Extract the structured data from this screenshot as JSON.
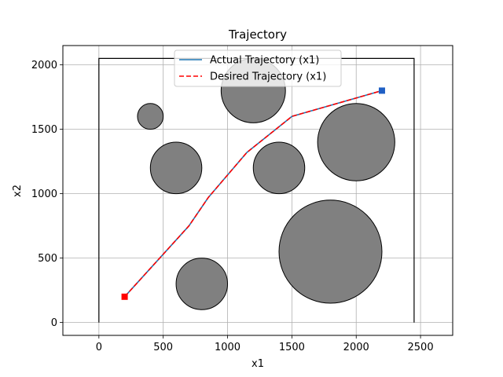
{
  "chart_data": {
    "type": "line",
    "title": "Trajectory",
    "xlabel": "x1",
    "ylabel": "x2",
    "xlim": [
      -280,
      2750
    ],
    "ylim": [
      -100,
      2150
    ],
    "xticks": [
      0,
      500,
      1000,
      1500,
      2000,
      2500
    ],
    "yticks": [
      0,
      500,
      1000,
      1500,
      2000
    ],
    "grid": true,
    "legend_position": "upper center",
    "boundary": {
      "x": [
        0,
        0,
        2450,
        2450
      ],
      "y": [
        0,
        2050,
        2050,
        0
      ]
    },
    "obstacles": [
      {
        "cx": 400,
        "cy": 1600,
        "r": 100
      },
      {
        "cx": 1200,
        "cy": 1800,
        "r": 250
      },
      {
        "cx": 600,
        "cy": 1200,
        "r": 200
      },
      {
        "cx": 1400,
        "cy": 1200,
        "r": 200
      },
      {
        "cx": 2000,
        "cy": 1400,
        "r": 300
      },
      {
        "cx": 800,
        "cy": 300,
        "r": 200
      },
      {
        "cx": 1800,
        "cy": 550,
        "r": 400
      }
    ],
    "series": [
      {
        "name": "Actual Trajectory (x1)",
        "color": "#1f77b4",
        "style": "solid",
        "x": [
          200,
          700,
          850,
          1150,
          1500,
          2200
        ],
        "y": [
          200,
          750,
          970,
          1320,
          1600,
          1800
        ]
      },
      {
        "name": "Desired Trajectory (x1)",
        "color": "#ff0000",
        "style": "dashed",
        "x": [
          200,
          700,
          850,
          1150,
          1500,
          2200
        ],
        "y": [
          200,
          750,
          970,
          1320,
          1600,
          1800
        ]
      }
    ],
    "start_marker": {
      "x": 200,
      "y": 200,
      "color": "#ff0000"
    },
    "goal_marker": {
      "x": 2200,
      "y": 1800,
      "color": "#1f5fc4"
    }
  }
}
